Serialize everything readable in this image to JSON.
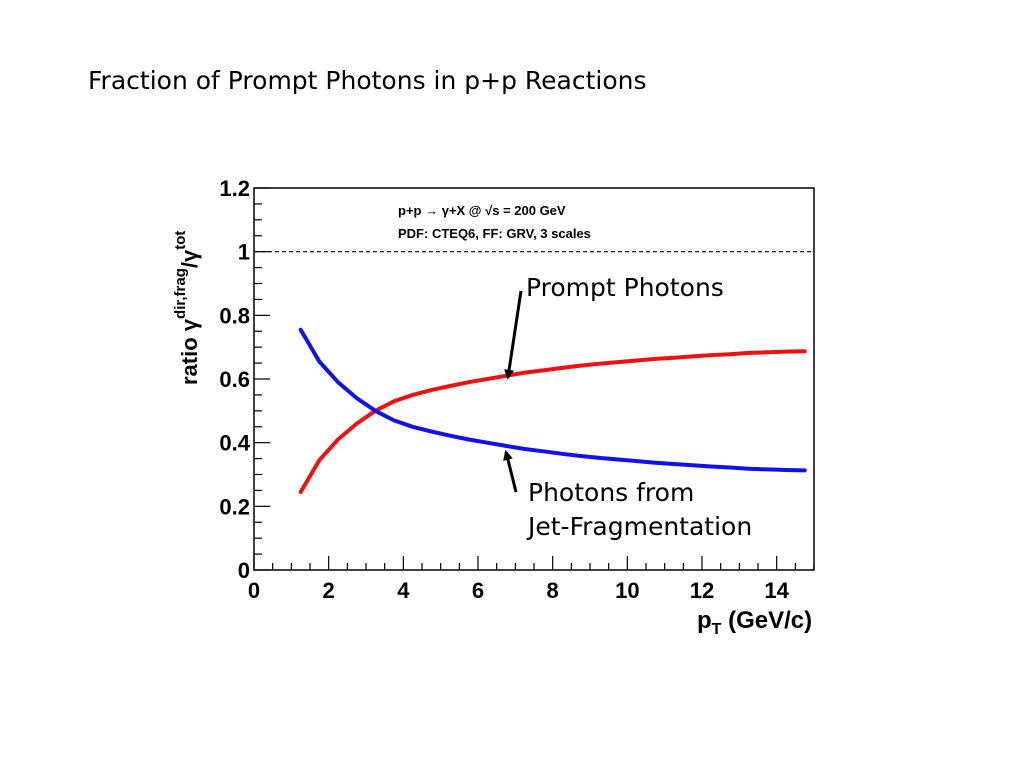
{
  "slide": {
    "title": "Fraction of Prompt Photons in p+p Reactions"
  },
  "chart_data": {
    "type": "line",
    "xlabel": "p_T (GeV/c)",
    "xlabel_main": "p",
    "xlabel_sub": "T",
    "xlabel_rest": " (GeV/c)",
    "ylabel": "ratio γ^{dir,frag}/γ^{tot}",
    "ylabel_main": "ratio γ",
    "ylabel_sup": "dir,frag",
    "ylabel_slash": "/γ",
    "ylabel_sup2": "tot",
    "xlim": [
      0,
      15
    ],
    "ylim": [
      0,
      1.2
    ],
    "xticks": [
      "0",
      "2",
      "4",
      "6",
      "8",
      "10",
      "12",
      "14"
    ],
    "yticks": [
      "0",
      "0.2",
      "0.4",
      "0.6",
      "0.8",
      "1",
      "1.2"
    ],
    "reference_line": {
      "y": 1.0,
      "style": "dashed"
    },
    "info_lines": [
      "p+p → γ+X @ √s = 200 GeV",
      "PDF: CTEQ6, FF: GRV, 3 scales"
    ],
    "series": [
      {
        "name": "Prompt Photons",
        "color": "#ee1111",
        "x": [
          1.25,
          1.75,
          2.25,
          2.75,
          3.25,
          3.75,
          4.25,
          4.75,
          5.25,
          5.75,
          6.25,
          6.75,
          7.25,
          7.75,
          8.25,
          8.75,
          9.25,
          9.75,
          10.25,
          10.75,
          11.25,
          11.75,
          12.25,
          12.75,
          13.25,
          13.75,
          14.25,
          14.75
        ],
        "y": [
          0.245,
          0.345,
          0.41,
          0.46,
          0.5,
          0.53,
          0.55,
          0.565,
          0.578,
          0.59,
          0.6,
          0.61,
          0.62,
          0.627,
          0.635,
          0.642,
          0.648,
          0.653,
          0.658,
          0.663,
          0.667,
          0.671,
          0.675,
          0.678,
          0.682,
          0.684,
          0.686,
          0.687
        ]
      },
      {
        "name": "Photons from Jet-Fragmentation",
        "color": "#1111ee",
        "x": [
          1.25,
          1.75,
          2.25,
          2.75,
          3.25,
          3.75,
          4.25,
          4.75,
          5.25,
          5.75,
          6.25,
          6.75,
          7.25,
          7.75,
          8.25,
          8.75,
          9.25,
          9.75,
          10.25,
          10.75,
          11.25,
          11.75,
          12.25,
          12.75,
          13.25,
          13.75,
          14.25,
          14.75
        ],
        "y": [
          0.755,
          0.655,
          0.59,
          0.54,
          0.5,
          0.47,
          0.45,
          0.435,
          0.422,
          0.41,
          0.4,
          0.39,
          0.38,
          0.373,
          0.365,
          0.358,
          0.352,
          0.347,
          0.342,
          0.337,
          0.333,
          0.329,
          0.325,
          0.322,
          0.318,
          0.316,
          0.314,
          0.313
        ]
      }
    ],
    "annotations": [
      {
        "lines": [
          "Prompt Photons"
        ],
        "target_series": "Prompt Photons",
        "arrow_to": {
          "x": 6.8,
          "y": 0.61
        }
      },
      {
        "lines": [
          "Photons from",
          "Jet-Fragmentation"
        ],
        "target_series": "Photons from Jet-Fragmentation",
        "arrow_to": {
          "x": 6.75,
          "y": 0.39
        }
      }
    ],
    "grid": false,
    "legend": "none"
  }
}
